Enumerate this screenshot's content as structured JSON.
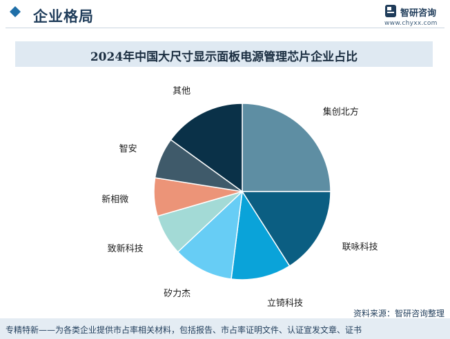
{
  "header": {
    "title": "企业格局",
    "brand": "智研咨询",
    "site": "www.chyxx.com"
  },
  "source": "资料来源：智研咨询整理",
  "footer": "专精特新——为各类企业提供市占率相关材料，包括报告、市占率证明文件、认证宣发文章、证书",
  "chart_data": {
    "type": "pie",
    "title": "2024年中国大尺寸显示面板电源管理芯片企业占比",
    "start_angle_deg": 0,
    "direction": "clockwise",
    "slices": [
      {
        "name": "集创北方",
        "value": 25.0,
        "color": "#5e8ea3"
      },
      {
        "name": "联咏科技",
        "value": 16.0,
        "color": "#0b5e82"
      },
      {
        "name": "立锜科技",
        "value": 11.0,
        "color": "#0aa3d9"
      },
      {
        "name": "矽力杰",
        "value": 11.0,
        "color": "#67cdf5"
      },
      {
        "name": "致新科技",
        "value": 7.5,
        "color": "#a3dad6"
      },
      {
        "name": "新相微",
        "value": 7.0,
        "color": "#ec9478"
      },
      {
        "name": "智安",
        "value": 7.5,
        "color": "#3f5a6a"
      },
      {
        "name": "其他",
        "value": 15.0,
        "color": "#0a3148"
      }
    ]
  }
}
